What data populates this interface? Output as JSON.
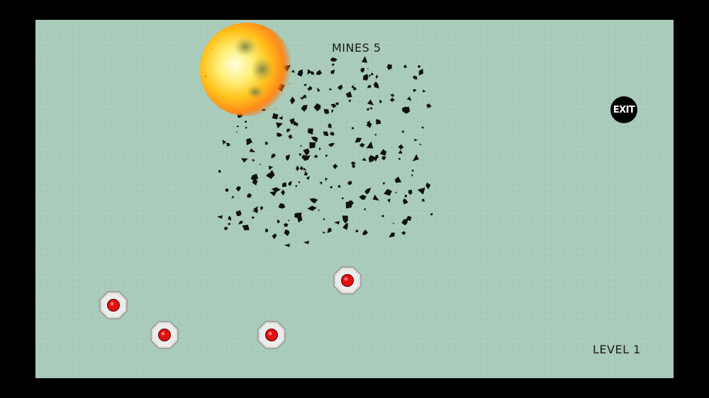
{
  "hud": {
    "mines_label": "MINES 5",
    "level_label": "LEVEL 1",
    "exit_label": "EXIT"
  },
  "mines": [
    {
      "id": "mine-1"
    },
    {
      "id": "mine-2"
    },
    {
      "id": "mine-3"
    },
    {
      "id": "mine-4"
    }
  ],
  "colors": {
    "board": "#a9cbb9",
    "mine_core": "#e01010",
    "mine_body": "#d8d8d8",
    "explosion_core": "#fff6a0",
    "explosion_outer": "#ff8a1a",
    "debris": "#111111"
  },
  "icons": {
    "exit": "exit-icon",
    "mine": "landmine-icon",
    "explosion": "explosion-icon"
  }
}
